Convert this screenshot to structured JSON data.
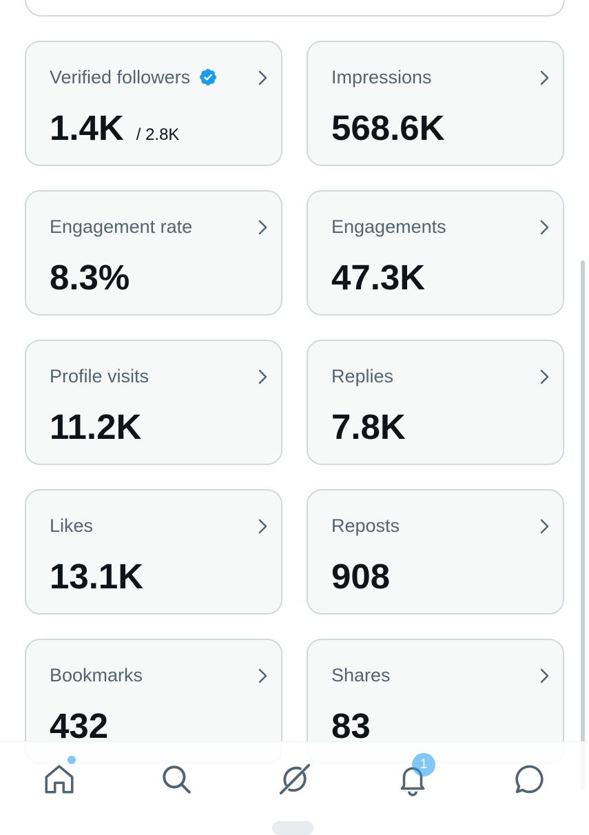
{
  "metrics": [
    {
      "title": "Verified followers",
      "value": "1.4K",
      "sub_value": "/ 2.8K",
      "verified": true
    },
    {
      "title": "Impressions",
      "value": "568.6K"
    },
    {
      "title": "Engagement rate",
      "value": "8.3%"
    },
    {
      "title": "Engagements",
      "value": "47.3K"
    },
    {
      "title": "Profile visits",
      "value": "11.2K"
    },
    {
      "title": "Replies",
      "value": "7.8K"
    },
    {
      "title": "Likes",
      "value": "13.1K"
    },
    {
      "title": "Reposts",
      "value": "908"
    },
    {
      "title": "Bookmarks",
      "value": "432"
    },
    {
      "title": "Shares",
      "value": "83"
    }
  ],
  "nav": {
    "items": [
      {
        "icon": "home-icon"
      },
      {
        "icon": "search-icon"
      },
      {
        "icon": "grok-icon"
      },
      {
        "icon": "notifications-icon"
      },
      {
        "icon": "messages-icon"
      }
    ],
    "notification_count": "1"
  },
  "colors": {
    "accent": "#1d9bf0",
    "card_background": "#f7f9f9",
    "card_border": "#cfd9de",
    "title_text": "#536471",
    "value_text": "#0f1419"
  }
}
